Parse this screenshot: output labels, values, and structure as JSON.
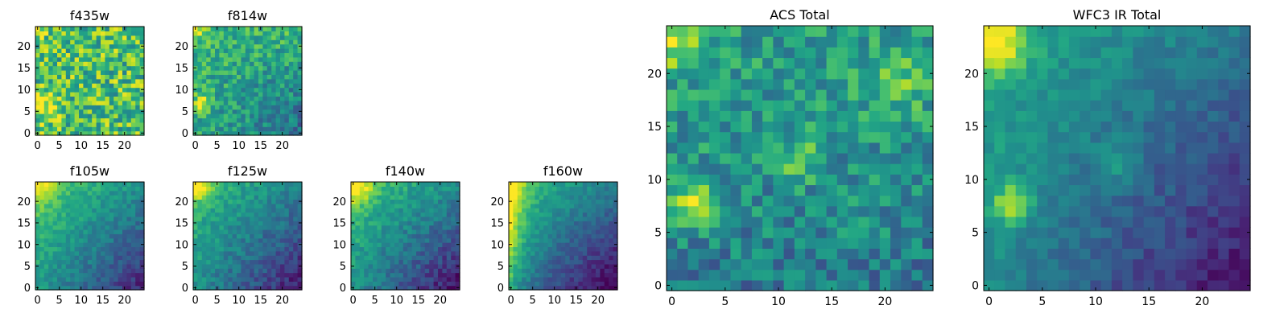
{
  "chart_data": [
    {
      "type": "heatmap",
      "title": "f435w",
      "xticks": [
        "0",
        "5",
        "10",
        "15",
        "20"
      ],
      "yticks": [
        "0",
        "5",
        "10",
        "15",
        "20"
      ],
      "xlim": [
        -0.5,
        24.5
      ],
      "ylim": [
        -0.5,
        24.5
      ],
      "colormap": "viridis",
      "grid": false,
      "values_shape": [
        25,
        25
      ],
      "pattern": "noisy yellow-green field, bright yellow blobs near (0-3, 4-8) and upper-left"
    },
    {
      "type": "heatmap",
      "title": "f814w",
      "xticks": [
        "0",
        "5",
        "10",
        "15",
        "20"
      ],
      "yticks": [
        "0",
        "5",
        "10",
        "15",
        "20"
      ],
      "xlim": [
        -0.5,
        24.5
      ],
      "ylim": [
        -0.5,
        24.5
      ],
      "colormap": "viridis",
      "grid": false,
      "values_shape": [
        25,
        25
      ],
      "pattern": "green field, yellow spot near (1-2, 7), darker lower-right"
    },
    {
      "type": "heatmap",
      "title": "f105w",
      "xticks": [
        "0",
        "5",
        "10",
        "15",
        "20"
      ],
      "yticks": [
        "0",
        "5",
        "10",
        "15",
        "20"
      ],
      "xlim": [
        -0.5,
        24.5
      ],
      "ylim": [
        -0.5,
        24.5
      ],
      "colormap": "viridis",
      "grid": false,
      "values_shape": [
        25,
        25
      ],
      "pattern": "yellow-green upper-left fading to dark purple lower-right"
    },
    {
      "type": "heatmap",
      "title": "f125w",
      "xticks": [
        "0",
        "5",
        "10",
        "15",
        "20"
      ],
      "yticks": [
        "0",
        "5",
        "10",
        "15",
        "20"
      ],
      "xlim": [
        -0.5,
        24.5
      ],
      "ylim": [
        -0.5,
        24.5
      ],
      "colormap": "viridis",
      "grid": false,
      "values_shape": [
        25,
        25
      ],
      "pattern": "yellow top-left corner, green middle, purple bottom-right"
    },
    {
      "type": "heatmap",
      "title": "f140w",
      "xticks": [
        "0",
        "5",
        "10",
        "15",
        "20"
      ],
      "yticks": [
        "0",
        "5",
        "10",
        "15",
        "20"
      ],
      "xlim": [
        -0.5,
        24.5
      ],
      "ylim": [
        -0.5,
        24.5
      ],
      "colormap": "viridis",
      "grid": false,
      "values_shape": [
        25,
        25
      ],
      "pattern": "yellow top-left, green upper half, dark purple bottom-right"
    },
    {
      "type": "heatmap",
      "title": "f160w",
      "xticks": [
        "0",
        "5",
        "10",
        "15",
        "20"
      ],
      "yticks": [
        "0",
        "5",
        "10",
        "15",
        "20"
      ],
      "xlim": [
        -0.5,
        24.5
      ],
      "ylim": [
        -0.5,
        24.5
      ],
      "colormap": "viridis",
      "grid": false,
      "values_shape": [
        25,
        25
      ],
      "pattern": "bright yellow left edge, green middle, dark purple bottom-right"
    },
    {
      "type": "heatmap",
      "title": "ACS Total",
      "xticks": [
        "0",
        "5",
        "10",
        "15",
        "20"
      ],
      "yticks": [
        "0",
        "5",
        "10",
        "15",
        "20"
      ],
      "xlim": [
        -0.5,
        24.5
      ],
      "ylim": [
        -0.5,
        24.5
      ],
      "colormap": "viridis",
      "grid": false,
      "values_shape": [
        25,
        25
      ],
      "pattern": "green/teal field, yellow top-left corner, yellow blob around (1-3, 7-9), yellow patch near (12, 11-12), dark cells in bottom rows"
    },
    {
      "type": "heatmap",
      "title": "WFC3 IR Total",
      "xticks": [
        "0",
        "5",
        "10",
        "15",
        "20"
      ],
      "yticks": [
        "0",
        "5",
        "10",
        "15",
        "20"
      ],
      "xlim": [
        -0.5,
        24.5
      ],
      "ylim": [
        -0.5,
        24.5
      ],
      "colormap": "viridis",
      "grid": false,
      "values_shape": [
        25,
        25
      ],
      "pattern": "yellow top-left corner, yellow blob around (2, 7-8), green upper region, dark purple lower-right"
    }
  ]
}
